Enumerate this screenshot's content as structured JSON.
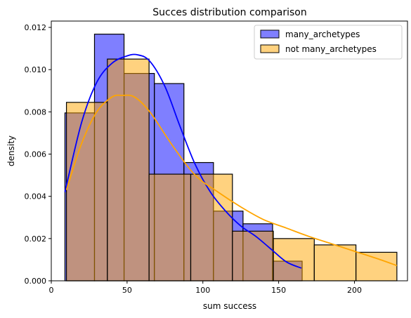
{
  "chart_data": {
    "type": "bar",
    "title": "Succes distribution comparison",
    "xlabel": "sum success",
    "ylabel": "density",
    "xlim": [
      0,
      235
    ],
    "ylim": [
      0,
      0.0123
    ],
    "xticks": [
      0,
      50,
      100,
      150,
      200
    ],
    "xtick_labels": [
      "0",
      "50",
      "100",
      "150",
      "200"
    ],
    "yticks": [
      0.0,
      0.002,
      0.004,
      0.006,
      0.008,
      0.01,
      0.012
    ],
    "ytick_labels": [
      "0.000",
      "0.002",
      "0.004",
      "0.006",
      "0.008",
      "0.010",
      "0.012"
    ],
    "grid": false,
    "legend_position": "top-right",
    "series": [
      {
        "name": "many_archetypes",
        "color": "#0000ff",
        "fill_opacity": 0.5,
        "bins": [
          {
            "x0": 9,
            "x1": 28.5,
            "y": 0.00795
          },
          {
            "x0": 28.5,
            "x1": 48,
            "y": 0.01168
          },
          {
            "x0": 48,
            "x1": 68,
            "y": 0.00982
          },
          {
            "x0": 68,
            "x1": 87.5,
            "y": 0.00934
          },
          {
            "x0": 87.5,
            "x1": 107,
            "y": 0.0056
          },
          {
            "x0": 107,
            "x1": 126.5,
            "y": 0.0033
          },
          {
            "x0": 126.5,
            "x1": 146,
            "y": 0.0027
          },
          {
            "x0": 146,
            "x1": 165.5,
            "y": 0.00093
          }
        ],
        "kde": {
          "x": [
            9,
            20,
            30,
            40,
            50,
            57,
            65,
            75,
            85,
            95,
            105,
            115,
            125,
            135,
            145,
            155,
            165
          ],
          "y": [
            0.0042,
            0.0075,
            0.0094,
            0.0103,
            0.01065,
            0.0107,
            0.0104,
            0.0092,
            0.0073,
            0.0055,
            0.0042,
            0.0033,
            0.0026,
            0.0021,
            0.0015,
            0.0009,
            0.0006
          ]
        }
      },
      {
        "name": "not many_archetypes",
        "color": "#ffa500",
        "fill_opacity": 0.5,
        "bins": [
          {
            "x0": 10,
            "x1": 37,
            "y": 0.00845
          },
          {
            "x0": 37,
            "x1": 64.5,
            "y": 0.0105
          },
          {
            "x0": 64.5,
            "x1": 92,
            "y": 0.00505
          },
          {
            "x0": 92,
            "x1": 119.5,
            "y": 0.00505
          },
          {
            "x0": 119.5,
            "x1": 146.5,
            "y": 0.00235
          },
          {
            "x0": 146.5,
            "x1": 173.5,
            "y": 0.002
          },
          {
            "x0": 173.5,
            "x1": 201,
            "y": 0.0017
          },
          {
            "x0": 201,
            "x1": 228,
            "y": 0.00135
          }
        ],
        "kde": {
          "x": [
            10,
            20,
            30,
            40,
            47,
            55,
            65,
            80,
            95,
            110,
            125,
            140,
            155,
            170,
            185,
            200,
            215,
            228
          ],
          "y": [
            0.0043,
            0.0065,
            0.008,
            0.0087,
            0.00878,
            0.0087,
            0.008,
            0.0064,
            0.005,
            0.0042,
            0.0035,
            0.0029,
            0.0025,
            0.0021,
            0.00175,
            0.0014,
            0.00105,
            0.00072
          ]
        }
      }
    ]
  }
}
